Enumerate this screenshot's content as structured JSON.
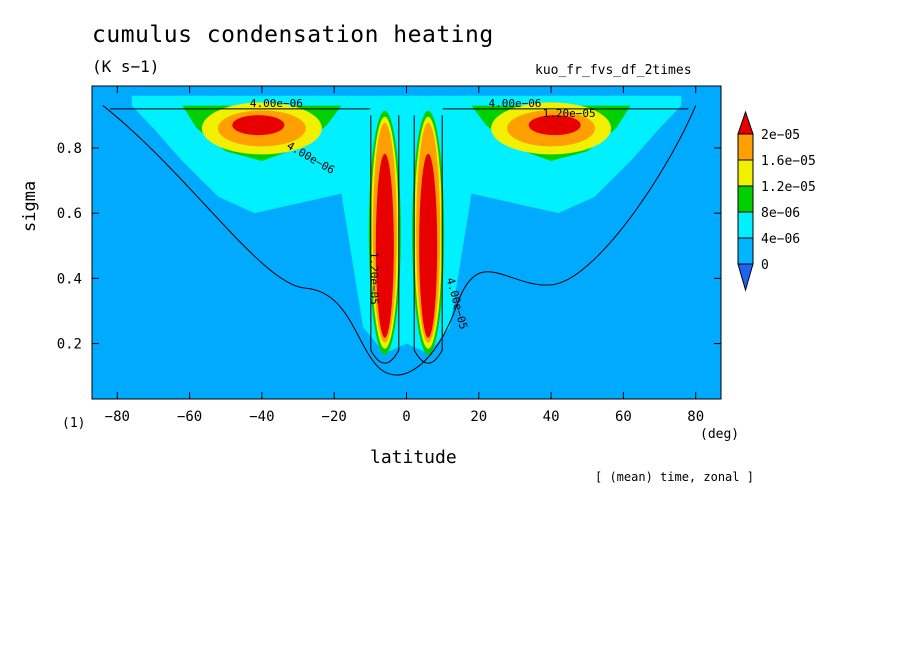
{
  "title": "cumulus condensation heating",
  "units": "(K s−1)",
  "run_name": "kuo_fr_fvs_df_2times",
  "panel_id": "(1)",
  "footnote": "[ (mean) time, zonal ]",
  "chart_data": {
    "type": "heatmap",
    "title": "cumulus condensation heating",
    "xlabel": "latitude",
    "xunit": "(deg)",
    "ylabel": "sigma",
    "xlim": [
      -87,
      87
    ],
    "ylim": [
      0.99,
      0.03
    ],
    "xticks": [
      -80,
      -60,
      -40,
      -20,
      0,
      20,
      40,
      60,
      80
    ],
    "xtick_labels": [
      "−80",
      "−60",
      "−40",
      "−20",
      "0",
      "20",
      "40",
      "60",
      "80"
    ],
    "yticks": [
      0.2,
      0.4,
      0.6,
      0.8
    ],
    "ytick_labels": [
      "0.2",
      "0.4",
      "0.6",
      "0.8"
    ],
    "colorbar": {
      "levels": [
        "0",
        "4e−06",
        "8e−06",
        "1.2e−05",
        "1.6e−05",
        "2e−05"
      ],
      "colors": [
        "#1e64f0",
        "#00b4ff",
        "#00f0ff",
        "#00d000",
        "#f0f000",
        "#ffa000",
        "#e80000"
      ]
    },
    "contour_labels": [
      {
        "text": "4.00e−06",
        "lat": -27,
        "sigma": 0.76,
        "angle": 30
      },
      {
        "text": "4.00e−06",
        "lat": -36,
        "sigma": 0.925,
        "angle": 0
      },
      {
        "text": "4.00e−06",
        "lat": 30,
        "sigma": 0.925,
        "angle": 0
      },
      {
        "text": "4.00e−05",
        "lat": 13,
        "sigma": 0.32,
        "angle": 75
      },
      {
        "text": "1.20e−05",
        "lat": 45,
        "sigma": 0.895,
        "angle": 0
      },
      {
        "text": "1.20e−05",
        "lat": -10,
        "sigma": 0.4,
        "angle": 90
      }
    ]
  }
}
